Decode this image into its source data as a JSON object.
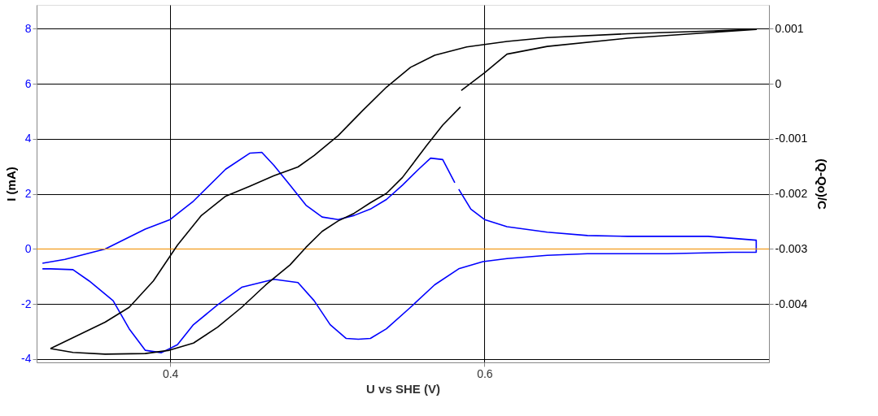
{
  "chart_data": {
    "type": "line",
    "xlabel": "U vs SHE (V)",
    "ylabel": "I (mA)",
    "y2label": "(Q-Qo)/C",
    "xlim": [
      0.315,
      0.781
    ],
    "xticks": [
      0.4,
      0.6
    ],
    "ylim": [
      -4.12,
      8.87
    ],
    "yticks": [
      -4,
      -2,
      0,
      2,
      4,
      6,
      8
    ],
    "y2lim": [
      -0.00506,
      0.001435
    ],
    "y2ticks": [
      -0.004,
      -0.003,
      -0.002,
      -0.001,
      0,
      0.001
    ],
    "grid": true,
    "marker": "none",
    "line_style": "solid",
    "ref_lines": [
      {
        "axis": "y",
        "value": 0,
        "color": "#ff9900"
      }
    ],
    "series": [
      {
        "color": "#0000ff",
        "x": [
          0.3187,
          0.333,
          0.3586,
          0.3841,
          0.4,
          0.4148,
          0.4353,
          0.4506,
          0.4583,
          0.466,
          0.4762,
          0.4864,
          0.4967,
          0.5069,
          0.5171,
          0.5274,
          0.5376,
          0.5478,
          0.5581,
          0.5657,
          0.5734,
          0.5811,
          0.5823,
          0.5836,
          0.5913,
          0.6,
          0.6143,
          0.6399,
          0.6655,
          0.691,
          0.7422,
          0.7729,
          0.7729,
          0.7575,
          0.7166,
          0.6655,
          0.6399,
          0.6143,
          0.599,
          0.5836,
          0.5683,
          0.5529,
          0.5376,
          0.5274,
          0.5197,
          0.512,
          0.5018,
          0.4916,
          0.4813,
          0.466,
          0.4455,
          0.4302,
          0.4148,
          0.4046,
          0.3944,
          0.3841,
          0.3739,
          0.3637,
          0.3484,
          0.3381,
          0.3238,
          0.3187
        ],
        "values": [
          -0.52,
          -0.38,
          0,
          0.72,
          1.07,
          1.74,
          2.9,
          3.48,
          3.51,
          3.04,
          2.32,
          1.59,
          1.16,
          1.07,
          1.22,
          1.45,
          1.8,
          2.32,
          2.9,
          3.3,
          3.25,
          2.41,
          null,
          2.17,
          1.45,
          1.07,
          0.81,
          0.61,
          0.49,
          0.46,
          0.46,
          0.32,
          -0.12,
          -0.12,
          -0.17,
          -0.17,
          -0.23,
          -0.35,
          -0.46,
          -0.72,
          -1.3,
          -2.12,
          -2.9,
          -3.25,
          -3.28,
          -3.25,
          -2.75,
          -1.88,
          -1.22,
          -1.1,
          -1.39,
          -2.03,
          -2.75,
          -3.48,
          -3.77,
          -3.68,
          -2.9,
          -1.88,
          -1.16,
          -0.75,
          -0.72,
          -0.72
        ]
      },
      {
        "color": "#000000",
        "axis": "y2",
        "x": [
          0.3238,
          0.3586,
          0.3739,
          0.3893,
          0.4046,
          0.4199,
          0.4353,
          0.4506,
          0.466,
          0.4813,
          0.4916,
          0.5069,
          0.5223,
          0.5376,
          0.5529,
          0.5683,
          0.5887,
          0.6143,
          0.6399,
          0.691,
          0.7422,
          0.7729,
          0.7422,
          0.691,
          0.6399,
          0.6143,
          0.6,
          0.5852,
          0.585,
          0.5847,
          0.5734,
          0.5632,
          0.5478,
          0.5376,
          0.5274,
          0.5171,
          0.5069,
          0.4967,
          0.4864,
          0.4762,
          0.4609,
          0.4455,
          0.4302,
          0.4148,
          0.3995,
          0.3841,
          0.3586,
          0.3381,
          0.3238
        ],
        "values": [
          -0.00481,
          -0.00433,
          -0.00406,
          -0.00358,
          -0.00293,
          -0.00239,
          -0.00204,
          -0.00186,
          -0.00167,
          -0.00151,
          -0.0013,
          -0.00094,
          -0.00049,
          -6e-05,
          0.0003,
          0.00052,
          0.00067,
          0.00077,
          0.00084,
          0.00091,
          0.00096,
          0.00099,
          0.00093,
          0.00083,
          0.00068,
          0.00054,
          0.0002,
          -0.00012,
          null,
          -0.00042,
          -0.00075,
          -0.00112,
          -0.0017,
          -0.00199,
          -0.00216,
          -0.00235,
          -0.00249,
          -0.00268,
          -0.00297,
          -0.00329,
          -0.00365,
          -0.00406,
          -0.00442,
          -0.00471,
          -0.00484,
          -0.0049,
          -0.00491,
          -0.00488,
          -0.00481
        ]
      }
    ]
  }
}
